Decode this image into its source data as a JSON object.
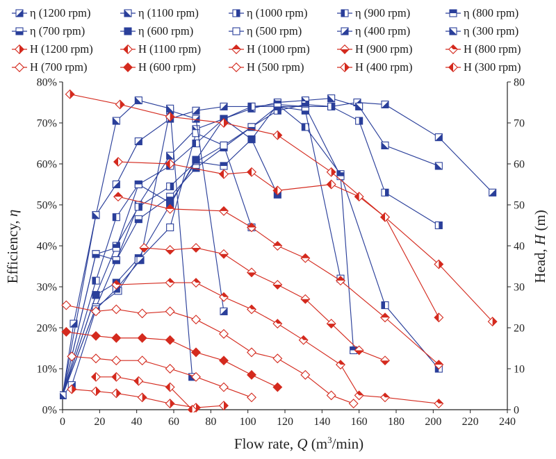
{
  "chart_data": {
    "type": "line",
    "xlabel": "Flow rate, ",
    "xlabel_var": "Q",
    "xlabel_unit_pre": " (m",
    "xlabel_sup": "3",
    "xlabel_unit_post": "/min)",
    "ylabel_left": "Efficiency, ",
    "ylabel_left_var": "η",
    "ylabel_right": "Head, ",
    "ylabel_right_var": "H",
    "ylabel_right_unit": " (m)",
    "xlim": [
      0,
      240
    ],
    "ylim_left": [
      0,
      80
    ],
    "ylim_right": [
      0,
      80
    ],
    "x_ticks": [
      "0",
      "20",
      "40",
      "60",
      "80",
      "100",
      "120",
      "140",
      "160",
      "180",
      "200",
      "220",
      "240"
    ],
    "y_left_ticks": [
      "0%",
      "10%",
      "20%",
      "30%",
      "40%",
      "50%",
      "60%",
      "70%",
      "80%"
    ],
    "y_right_ticks": [
      "0",
      "10",
      "20",
      "30",
      "40",
      "50",
      "60",
      "70",
      "80"
    ],
    "colors": {
      "efficiency": "#2a3f9a",
      "head": "#d42a1e",
      "axis": "#222222"
    },
    "series": [
      {
        "name": "η (1200 rpm)",
        "kind": "eff",
        "marker": "sq-diag",
        "x": [
          0,
          6,
          18,
          29,
          41,
          58,
          72,
          87,
          102,
          116,
          131,
          145,
          159,
          174,
          203,
          232
        ],
        "y": [
          3.5,
          21,
          47.5,
          55,
          65.5,
          71,
          73,
          74,
          74,
          74,
          74,
          74,
          75,
          74.5,
          66.5,
          53
        ]
      },
      {
        "name": "η (1100 rpm)",
        "kind": "eff",
        "marker": "sq-diag2",
        "x": [
          0,
          18,
          29,
          41,
          58,
          72,
          87,
          102,
          116,
          131,
          145,
          160,
          174,
          203
        ],
        "y": [
          3.5,
          25,
          36.5,
          50,
          62,
          68.5,
          71,
          73.5,
          75,
          75.5,
          76,
          74,
          64.5,
          59.5
        ]
      },
      {
        "name": "η (1000 rpm)",
        "kind": "eff",
        "marker": "sq-vhalf",
        "x": [
          0,
          18,
          29,
          41,
          58,
          72,
          87,
          102,
          116,
          131,
          145,
          160,
          174,
          203
        ],
        "y": [
          3.5,
          28,
          40,
          49.5,
          54.5,
          60.5,
          64.5,
          69,
          73,
          74.5,
          74,
          70.5,
          53,
          45
        ]
      },
      {
        "name": "η (900 rpm)",
        "kind": "eff",
        "marker": "sq-vhalf2",
        "x": [
          0,
          18,
          29,
          41,
          58,
          72,
          87,
          102,
          116,
          131,
          150,
          174,
          203
        ],
        "y": [
          3.5,
          31.5,
          47,
          55,
          59.5,
          65,
          71,
          74,
          74.5,
          69,
          57.5,
          25.5,
          10
        ]
      },
      {
        "name": "η (800 rpm)",
        "kind": "eff",
        "marker": "sq-hhalf",
        "x": [
          0,
          18,
          29,
          41,
          58,
          72,
          87,
          102,
          116,
          131,
          150,
          157
        ],
        "y": [
          3.5,
          38,
          39.5,
          55,
          50.5,
          60.5,
          59.5,
          66,
          74.5,
          74,
          57,
          14.5
        ]
      },
      {
        "name": "η (700 rpm)",
        "kind": "eff",
        "marker": "sq-hhalf2",
        "x": [
          0,
          18,
          29,
          41,
          58,
          72,
          87,
          102,
          116,
          131,
          150
        ],
        "y": [
          3.5,
          38,
          36.5,
          46.5,
          52,
          59,
          64,
          69,
          74,
          73,
          32
        ]
      },
      {
        "name": "η (600 rpm)",
        "kind": "eff",
        "marker": "sq-full",
        "x": [
          0,
          18,
          29,
          41,
          58,
          72,
          87,
          102,
          116
        ],
        "y": [
          3.5,
          28,
          31,
          37,
          50,
          61,
          71,
          66,
          52.5
        ]
      },
      {
        "name": "η (500 rpm)",
        "kind": "eff",
        "marker": "sq-open",
        "x": [
          0,
          18,
          30,
          41,
          58,
          72,
          87,
          102
        ],
        "y": [
          3.5,
          25,
          29,
          36.5,
          44.5,
          67.5,
          64.5,
          44.5
        ]
      },
      {
        "name": "η (400 rpm)",
        "kind": "eff",
        "marker": "sq-diag3",
        "x": [
          0,
          5,
          18,
          29,
          42,
          58,
          72,
          87
        ],
        "y": [
          3.5,
          6,
          24.5,
          29.5,
          36.5,
          73,
          71,
          24
        ]
      },
      {
        "name": "η (300 rpm)",
        "kind": "eff",
        "marker": "sq-diag4",
        "x": [
          0,
          18,
          29,
          41,
          58,
          70
        ],
        "y": [
          3.5,
          47.5,
          70.5,
          75.5,
          73.5,
          8
        ]
      },
      {
        "name": "H (1200 rpm)",
        "kind": "head",
        "marker": "di-half",
        "x": [
          4,
          31,
          58,
          87,
          116,
          145,
          174,
          203,
          232
        ],
        "y": [
          77,
          74.5,
          71.5,
          70,
          67,
          58,
          47,
          35.5,
          21.5
        ]
      },
      {
        "name": "H (1100 rpm)",
        "kind": "head",
        "marker": "di-half2",
        "x": [
          30,
          58,
          87,
          102,
          116,
          145,
          160,
          174,
          203
        ],
        "y": [
          60.5,
          60,
          57.5,
          58,
          53.5,
          55,
          52,
          47,
          22.5
        ]
      },
      {
        "name": "H (1000 rpm)",
        "kind": "head",
        "marker": "di-vhalf",
        "x": [
          30,
          58,
          87,
          102,
          116,
          131,
          150,
          174,
          203
        ],
        "y": [
          52,
          49,
          48.5,
          44.5,
          40,
          37,
          31.5,
          22.5,
          11
        ]
      },
      {
        "name": "H (900 rpm)",
        "kind": "head",
        "marker": "di-vhalf2",
        "x": [
          44,
          58,
          72,
          87,
          102,
          116,
          131,
          145,
          160,
          174
        ],
        "y": [
          39.5,
          39,
          39.5,
          38,
          33.5,
          30.5,
          27,
          21,
          14.5,
          12
        ]
      },
      {
        "name": "H (800 rpm)",
        "kind": "head",
        "marker": "di-hhalf",
        "x": [
          29,
          58,
          72,
          87,
          102,
          116,
          130,
          150,
          160,
          174,
          203
        ],
        "y": [
          30.5,
          31,
          31,
          27.5,
          24.5,
          21,
          17,
          11,
          3.5,
          3,
          1.5
        ]
      },
      {
        "name": "H (700 rpm)",
        "kind": "head",
        "marker": "di-hhalf2",
        "x": [
          2,
          18,
          29,
          43,
          58,
          72,
          87,
          102,
          116,
          131,
          145,
          157
        ],
        "y": [
          25.5,
          24,
          24.5,
          23.5,
          24,
          22,
          18.5,
          14,
          12.5,
          8.5,
          3.5,
          1.5
        ]
      },
      {
        "name": "H (600 rpm)",
        "kind": "head",
        "marker": "di-full",
        "x": [
          2,
          18,
          29,
          43,
          58,
          72,
          87,
          102,
          116
        ],
        "y": [
          19,
          18,
          17.5,
          17.5,
          17,
          14,
          12,
          8.5,
          5.5
        ]
      },
      {
        "name": "H (500 rpm)",
        "kind": "head",
        "marker": "di-open",
        "x": [
          5,
          18,
          29,
          43,
          58,
          72,
          87,
          102
        ],
        "y": [
          13,
          12.5,
          12,
          12,
          10,
          8,
          5.5,
          3
        ]
      },
      {
        "name": "H (400 rpm)",
        "kind": "head",
        "marker": "di-half3",
        "x": [
          5,
          18,
          29,
          43,
          58,
          72,
          87
        ],
        "y": [
          5,
          4.5,
          4,
          3,
          1.5,
          0.5,
          1
        ]
      },
      {
        "name": "H (300 rpm)",
        "kind": "head",
        "marker": "di-half4",
        "x": [
          18,
          29,
          41,
          58,
          70
        ],
        "y": [
          8,
          8,
          7,
          5.5,
          0
        ]
      }
    ]
  }
}
